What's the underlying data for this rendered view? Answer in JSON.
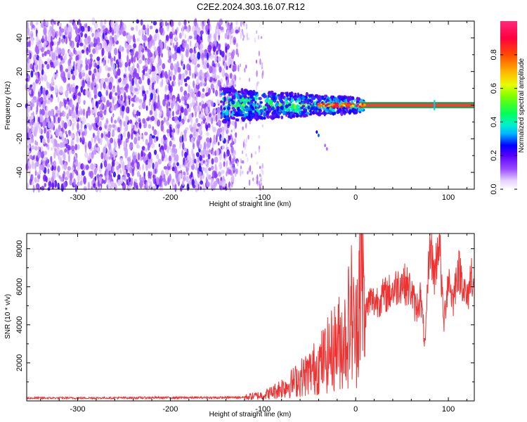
{
  "title": "C2E2.2024.303.16.07.R12",
  "chart_data": [
    {
      "type": "heatmap",
      "name": "spectrogram",
      "xlabel": "Height of straight line (km)",
      "ylabel": "Frequency (Hz)",
      "xlim": [
        -355,
        128
      ],
      "ylim": [
        -50,
        50
      ],
      "xticks": [
        -300,
        -200,
        -100,
        0,
        100
      ],
      "yticks": [
        -40,
        -20,
        0,
        20,
        40
      ],
      "colorbar": {
        "label": "Normalized spectral amplitude",
        "range": [
          0,
          1
        ],
        "ticks": [
          0.0,
          0.2,
          0.4,
          0.6,
          0.8
        ]
      },
      "description_regions": [
        {
          "x_range": [
            -355,
            -128
          ],
          "content": "broadband noise",
          "amplitude": [
            0.05,
            0.25
          ]
        },
        {
          "x_range": [
            -145,
            10
          ],
          "content": "signal near 0 Hz with noise",
          "amplitude": [
            0.2,
            0.6
          ]
        },
        {
          "x_range": [
            10,
            128
          ],
          "content": "strong narrow line at 0 Hz",
          "amplitude": [
            0.9,
            1.0
          ]
        }
      ]
    },
    {
      "type": "line",
      "name": "snr",
      "xlabel": "Height of straight line (km)",
      "ylabel": "SNR (10 * v/v)",
      "xlim": [
        -355,
        128
      ],
      "ylim": [
        0,
        8800
      ],
      "xticks": [
        -300,
        -200,
        -100,
        0,
        100
      ],
      "yticks": [
        2000,
        4000,
        6000,
        8000
      ],
      "color": "#ee3333",
      "series": [
        {
          "name": "SNR",
          "points": [
            [
              -355,
              150
            ],
            [
              -300,
              150
            ],
            [
              -250,
              160
            ],
            [
              -200,
              170
            ],
            [
              -150,
              170
            ],
            [
              -120,
              190
            ],
            [
              -100,
              300
            ],
            [
              -90,
              450
            ],
            [
              -80,
              700
            ],
            [
              -70,
              900
            ],
            [
              -60,
              1200
            ],
            [
              -50,
              1500
            ],
            [
              -40,
              1900
            ],
            [
              -30,
              2400
            ],
            [
              -20,
              3000
            ],
            [
              -10,
              3400
            ],
            [
              -5,
              4800
            ],
            [
              0,
              3200
            ],
            [
              5,
              7600
            ],
            [
              10,
              4500
            ],
            [
              15,
              5300
            ],
            [
              20,
              5200
            ],
            [
              30,
              5500
            ],
            [
              40,
              5800
            ],
            [
              50,
              6300
            ],
            [
              60,
              5800
            ],
            [
              65,
              4800
            ],
            [
              70,
              5500
            ],
            [
              75,
              2800
            ],
            [
              80,
              8500
            ],
            [
              85,
              6500
            ],
            [
              90,
              8700
            ],
            [
              95,
              4000
            ],
            [
              100,
              6600
            ],
            [
              105,
              5200
            ],
            [
              110,
              7000
            ],
            [
              115,
              6400
            ],
            [
              120,
              5200
            ],
            [
              125,
              6800
            ],
            [
              128,
              6000
            ]
          ]
        }
      ]
    }
  ]
}
